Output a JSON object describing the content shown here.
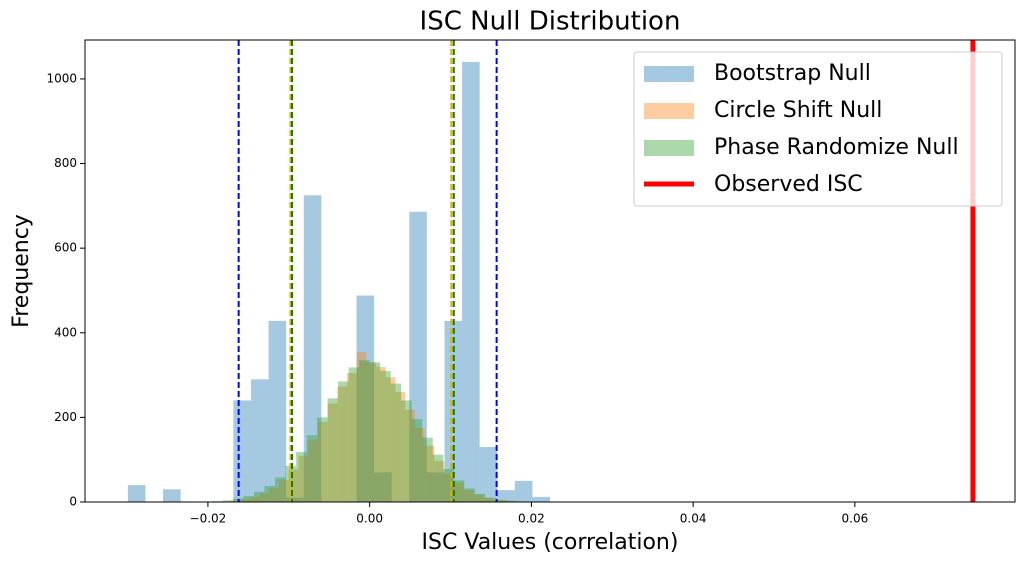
{
  "chart_data": {
    "type": "histogram",
    "title": "ISC Null Distribution",
    "x_label": "ISC Values (correlation)",
    "y_label": "Frequency",
    "xlim": [
      -0.0352,
      0.0798
    ],
    "ylim": [
      0,
      1092
    ],
    "xticks": [
      {
        "value": -0.02,
        "label": "−0.02"
      },
      {
        "value": 0,
        "label": "0.00"
      },
      {
        "value": 0.02,
        "label": "0.02"
      },
      {
        "value": 0.04,
        "label": "0.04"
      },
      {
        "value": 0.06,
        "label": "0.06"
      }
    ],
    "yticks": [
      0,
      200,
      400,
      600,
      800,
      1000
    ],
    "legend": "upper right",
    "series": [
      {
        "name": "Bootstrap Null",
        "color": "#1f77b4",
        "threshold_color": "#0000ff",
        "bins": [
          -0.0299,
          -0.027725,
          -0.02555,
          -0.023375,
          -0.0212,
          -0.019025,
          -0.01685,
          -0.014675,
          -0.0125,
          -0.010325,
          -0.00815,
          -0.005975,
          -0.0038,
          -0.001625,
          0.00055,
          0.002725,
          0.0049,
          0.007075,
          0.00925,
          0.011425,
          0.0136,
          0.015775,
          0.01795,
          0.020125,
          0.0223
        ],
        "values": [
          40,
          0,
          30,
          0,
          0,
          0,
          240,
          290,
          428,
          10,
          725,
          0,
          0,
          488,
          70,
          0,
          686,
          70,
          428,
          1040,
          130,
          28,
          50,
          12
        ],
        "thresholds": [
          -0.0162,
          0.0157
        ]
      },
      {
        "name": "Circle Shift Null",
        "color": "#ff7f0e",
        "threshold_color": "#e0b000",
        "bins": [
          -0.0172,
          -0.016,
          -0.0148,
          -0.0136,
          -0.0124,
          -0.0112,
          -0.01,
          -0.0088,
          -0.0076,
          -0.0064,
          -0.0052,
          -0.004,
          -0.0028,
          -0.0016,
          -0.0004,
          0.0008,
          0.002,
          0.0032,
          0.0044,
          0.0056,
          0.0068,
          0.008,
          0.0092,
          0.0104,
          0.0116,
          0.0128,
          0.014,
          0.0152,
          0.0164,
          0.0176,
          0.0188
        ],
        "values": [
          3,
          7,
          12,
          20,
          33,
          52,
          77,
          109,
          147,
          189,
          233,
          273,
          305,
          355,
          330,
          319,
          295,
          260,
          218,
          175,
          133,
          97,
          67,
          45,
          28,
          17,
          10,
          5,
          3,
          2
        ],
        "thresholds": [
          -0.0098,
          0.0101
        ]
      },
      {
        "name": "Phase Randomize Null",
        "color": "#2ca02c",
        "threshold_color": "#1a7a00",
        "bins": [
          -0.0195,
          -0.0182,
          -0.0169,
          -0.0156,
          -0.0143,
          -0.013,
          -0.0117,
          -0.0104,
          -0.0091,
          -0.0078,
          -0.0065,
          -0.0052,
          -0.0039,
          -0.0026,
          -0.0013,
          0,
          0.0013,
          0.0026,
          0.0039,
          0.0052,
          0.0065,
          0.0078,
          0.0091,
          0.0104,
          0.0117,
          0.013,
          0.0143,
          0.0156,
          0.0169,
          0.0182,
          0.0195
        ],
        "values": [
          2,
          4,
          8,
          14,
          24,
          38,
          58,
          85,
          118,
          158,
          200,
          245,
          285,
          318,
          335,
          330,
          310,
          280,
          240,
          196,
          152,
          112,
          78,
          51,
          32,
          19,
          10,
          5,
          3,
          1
        ],
        "thresholds": [
          -0.0096,
          0.0104
        ]
      }
    ],
    "observed": {
      "name": "Observed ISC",
      "color": "#ff0000",
      "value": 0.0746
    }
  }
}
